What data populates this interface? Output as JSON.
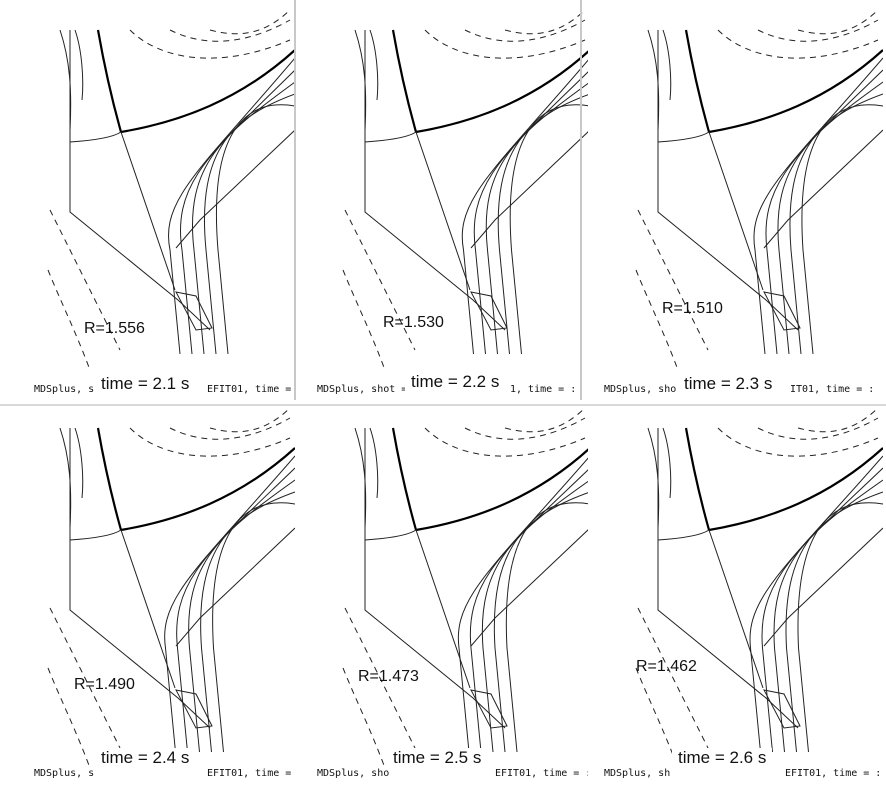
{
  "panels": [
    {
      "time_label": "time = 2.1 s",
      "r_label": "R=1.556",
      "caption_left": "MDSplus, sl",
      "caption_right": "EFIT01, time = :"
    },
    {
      "time_label": "time = 2.2 s",
      "r_label": "R=1.530",
      "caption_left": "MDSplus, shot =",
      "caption_right": "1, time = :"
    },
    {
      "time_label": "time = 2.3 s",
      "r_label": "R=1.510",
      "caption_left": "MDSplus, sho",
      "caption_right": "IT01, time = :"
    },
    {
      "time_label": "time = 2.4 s",
      "r_label": "R=1.490",
      "caption_left": "MDSplus, s",
      "caption_right": "EFIT01, time = :"
    },
    {
      "time_label": "time = 2.5 s",
      "r_label": "R=1.473",
      "caption_left": "MDSplus, sho",
      "caption_right": "EFIT01, time = :"
    },
    {
      "time_label": "time = 2.6 s",
      "r_label": "R=1.462",
      "caption_left": "MDSplus, sh",
      "caption_right": "EFIT01, time = :"
    }
  ],
  "strike_point_R": [
    1.556,
    1.53,
    1.51,
    1.49,
    1.473,
    1.462
  ],
  "times_s": [
    2.1,
    2.2,
    2.3,
    2.4,
    2.5,
    2.6
  ]
}
